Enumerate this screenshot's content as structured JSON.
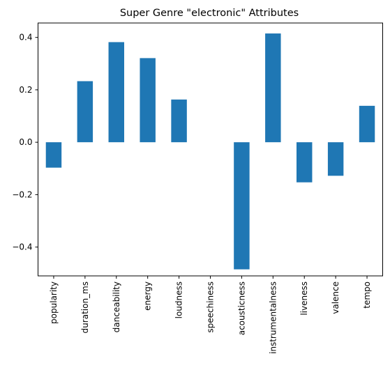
{
  "chart_data": {
    "type": "bar",
    "title": "Super Genre \"electronic\" Attributes",
    "xlabel": "",
    "ylabel": "",
    "categories": [
      "popularity",
      "duration_ms",
      "danceability",
      "energy",
      "loudness",
      "speechiness",
      "acousticness",
      "instrumentalness",
      "liveness",
      "valence",
      "tempo"
    ],
    "values": [
      -0.097,
      0.233,
      0.382,
      0.321,
      0.163,
      0.0,
      -0.485,
      0.415,
      -0.153,
      -0.128,
      0.139
    ],
    "ylim": [
      -0.51,
      0.455
    ],
    "yticks": [
      -0.4,
      -0.2,
      0.0,
      0.2,
      0.4
    ],
    "ytick_labels": [
      "−0.4",
      "−0.2",
      "0.0",
      "0.2",
      "0.4"
    ],
    "grid": false,
    "legend": "none",
    "bar_color": "#1f77b4"
  }
}
